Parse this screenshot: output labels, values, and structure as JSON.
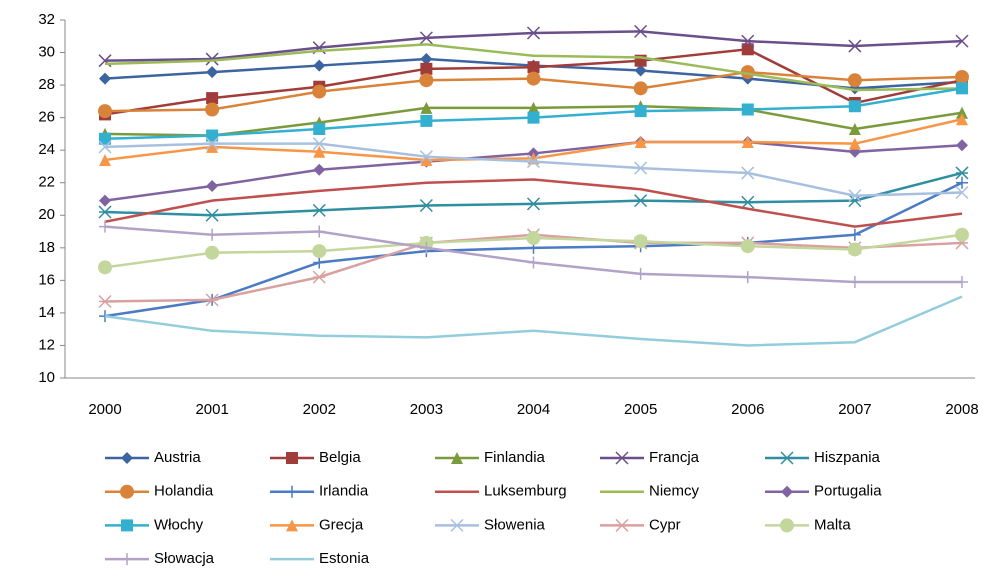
{
  "chart_data": {
    "type": "line",
    "categories": [
      "2000",
      "2001",
      "2002",
      "2003",
      "2004",
      "2005",
      "2006",
      "2007",
      "2008"
    ],
    "ylim": [
      10,
      32
    ],
    "yticks": [
      10,
      12,
      14,
      16,
      18,
      20,
      22,
      24,
      26,
      28,
      30,
      32
    ],
    "grid": false,
    "series": [
      {
        "name": "Austria",
        "color": "#3b64a0",
        "marker": "diamond",
        "values": [
          28.4,
          28.8,
          29.2,
          29.6,
          29.2,
          28.9,
          28.4,
          27.8,
          28.2
        ]
      },
      {
        "name": "Belgia",
        "color": "#a03c3a",
        "marker": "square",
        "values": [
          26.2,
          27.2,
          27.9,
          29.0,
          29.1,
          29.5,
          30.2,
          26.9,
          28.3
        ]
      },
      {
        "name": "Finlandia",
        "color": "#7a9a3c",
        "marker": "triangle",
        "values": [
          25.0,
          24.9,
          25.7,
          26.6,
          26.6,
          26.7,
          26.5,
          25.3,
          26.3
        ]
      },
      {
        "name": "Francja",
        "color": "#6a4f8a",
        "marker": "x",
        "values": [
          29.5,
          29.6,
          30.3,
          30.9,
          31.2,
          31.3,
          30.7,
          30.4,
          30.7
        ]
      },
      {
        "name": "Hiszpania",
        "color": "#2f8ea0",
        "marker": "asterisk",
        "values": [
          20.2,
          20.0,
          20.3,
          20.6,
          20.7,
          20.9,
          20.8,
          20.9,
          22.6
        ]
      },
      {
        "name": "Holandia",
        "color": "#d9833a",
        "marker": "circle",
        "values": [
          26.4,
          26.5,
          27.6,
          28.3,
          28.4,
          27.8,
          28.8,
          28.3,
          28.5
        ]
      },
      {
        "name": "Irlandia",
        "color": "#4a7bc4",
        "marker": "plus",
        "values": [
          13.8,
          14.8,
          17.1,
          17.8,
          18.0,
          18.1,
          18.3,
          18.8,
          22.0
        ]
      },
      {
        "name": "Luksemburg",
        "color": "#c0504d",
        "marker": "none",
        "values": [
          19.6,
          20.9,
          21.5,
          22.0,
          22.2,
          21.6,
          20.4,
          19.3,
          20.1
        ]
      },
      {
        "name": "Niemcy",
        "color": "#9bbb59",
        "marker": "none",
        "values": [
          29.3,
          29.5,
          30.1,
          30.5,
          29.8,
          29.7,
          28.7,
          27.7,
          27.8
        ]
      },
      {
        "name": "Portugalia",
        "color": "#8064a2",
        "marker": "diamond",
        "values": [
          20.9,
          21.8,
          22.8,
          23.3,
          23.8,
          24.5,
          24.5,
          23.9,
          24.3
        ]
      },
      {
        "name": "Włochy",
        "color": "#33b0d0",
        "marker": "square",
        "values": [
          24.7,
          24.9,
          25.3,
          25.8,
          26.0,
          26.4,
          26.5,
          26.7,
          27.8
        ]
      },
      {
        "name": "Grecja",
        "color": "#f79646",
        "marker": "triangle",
        "values": [
          23.4,
          24.2,
          23.9,
          23.4,
          23.5,
          24.5,
          24.5,
          24.4,
          25.9
        ]
      },
      {
        "name": "Słowenia",
        "color": "#a8c0e0",
        "marker": "x",
        "values": [
          24.2,
          24.4,
          24.4,
          23.6,
          23.3,
          22.9,
          22.6,
          21.2,
          21.4
        ]
      },
      {
        "name": "Cypr",
        "color": "#d9a0a0",
        "marker": "asterisk",
        "values": [
          14.7,
          14.8,
          16.2,
          18.3,
          18.8,
          18.3,
          18.3,
          18.0,
          18.3
        ]
      },
      {
        "name": "Malta",
        "color": "#c3d69b",
        "marker": "circle",
        "values": [
          16.8,
          17.7,
          17.8,
          18.3,
          18.6,
          18.4,
          18.1,
          17.9,
          18.8
        ]
      },
      {
        "name": "Słowacja",
        "color": "#b3a2c7",
        "marker": "plus",
        "values": [
          19.3,
          18.8,
          19.0,
          18.0,
          17.1,
          16.4,
          16.2,
          15.9,
          15.9
        ]
      },
      {
        "name": "Estonia",
        "color": "#93cddd",
        "marker": "none",
        "values": [
          13.8,
          12.9,
          12.6,
          12.5,
          12.9,
          12.4,
          12.0,
          12.2,
          15.0
        ]
      }
    ]
  }
}
